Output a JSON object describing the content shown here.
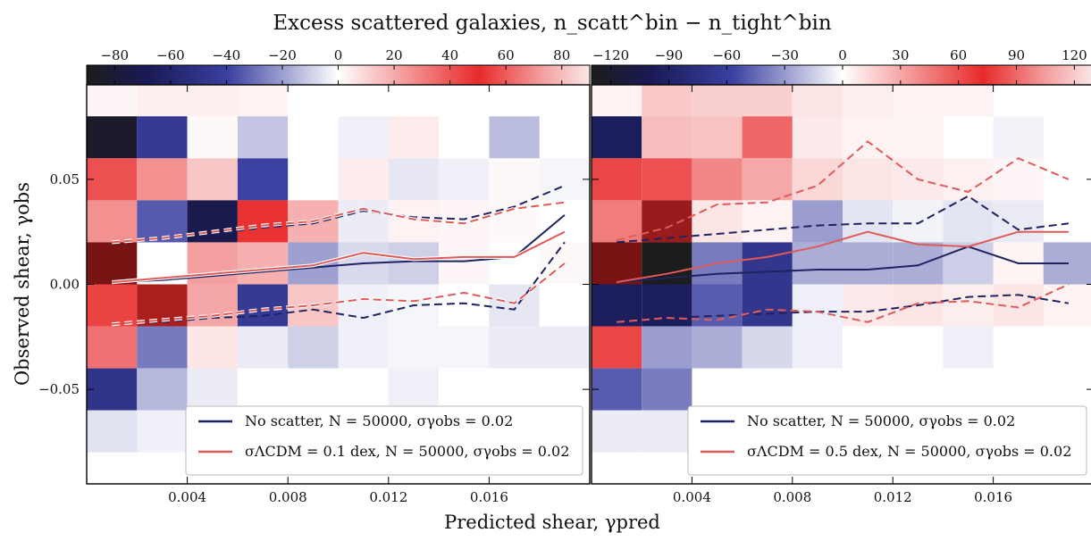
{
  "figure": {
    "title": "Excess scattered galaxies, n_scatt^bin − n_tight^bin",
    "xlabel": "Predicted shear, γpred",
    "ylabel": "Observed shear, γobs",
    "x_tick_labels": [
      "0.004",
      "0.008",
      "0.012",
      "0.016"
    ],
    "y_tick_labels": [
      "0.05",
      "0.00",
      "−0.05"
    ],
    "colors": {
      "no_scatter": "#1f2362",
      "scatter": "#e05a5a",
      "cmap_low": "#1c1c1c",
      "cmap_mid_low": "#3a40a0",
      "cmap_zero": "#ffffff",
      "cmap_mid_high": "#e82a2a",
      "cmap_high": "#fbe8e8"
    }
  },
  "chart_data": [
    {
      "type": "heatmap",
      "panel": "left",
      "colorbar": {
        "min": -90,
        "max": 90,
        "ticks": [
          -80,
          -60,
          -40,
          -20,
          0,
          20,
          40,
          60,
          80
        ],
        "tick_labels": [
          "−80",
          "−60",
          "−40",
          "−20",
          "0",
          "20",
          "40",
          "60",
          "80"
        ]
      },
      "xlim": [
        0.0,
        0.02
      ],
      "ylim": [
        -0.095,
        0.095
      ],
      "x_bins": [
        0.0,
        0.002,
        0.004,
        0.006,
        0.008,
        0.01,
        0.012,
        0.014,
        0.016,
        0.018,
        0.02
      ],
      "y_bins": [
        -0.08,
        -0.06,
        -0.04,
        -0.02,
        0.0,
        0.02,
        0.04,
        0.06,
        0.08,
        0.1
      ],
      "cells_top_to_bottom": [
        [
          3,
          5,
          5,
          4,
          0,
          0,
          0,
          0,
          0,
          0
        ],
        [
          -85,
          -45,
          2,
          -12,
          0,
          -3,
          6,
          0,
          -14,
          0
        ],
        [
          55,
          35,
          18,
          -40,
          0,
          6,
          -5,
          -3,
          2,
          -2
        ],
        [
          35,
          -35,
          -75,
          65,
          25,
          -4,
          4,
          3,
          2,
          0
        ],
        [
          95,
          0,
          30,
          25,
          -20,
          -8,
          -10,
          3,
          0,
          2
        ],
        [
          60,
          80,
          28,
          -45,
          18,
          -3,
          -2,
          0,
          -5,
          0
        ],
        [
          45,
          -28,
          8,
          -4,
          -10,
          -3,
          -2,
          -2,
          -4,
          -4
        ],
        [
          -50,
          -15,
          -4,
          0,
          0,
          0,
          -3,
          0,
          0,
          0
        ],
        [
          -6,
          -3,
          0,
          0,
          0,
          0,
          0,
          0,
          0,
          0
        ]
      ],
      "series": [
        {
          "name": "No scatter, N = 50000, σγobs = 0.02",
          "color": "#1f2362",
          "x": [
            0.001,
            0.003,
            0.005,
            0.007,
            0.009,
            0.011,
            0.013,
            0.015,
            0.017,
            0.019
          ],
          "median": [
            0.001,
            0.002,
            0.004,
            0.006,
            0.008,
            0.01,
            0.011,
            0.011,
            0.013,
            0.033
          ],
          "upper": [
            0.02,
            0.022,
            0.024,
            0.027,
            0.029,
            0.035,
            0.032,
            0.031,
            0.037,
            0.047
          ],
          "lower": [
            -0.019,
            -0.018,
            -0.016,
            -0.015,
            -0.012,
            -0.016,
            -0.01,
            -0.009,
            -0.012,
            0.02
          ]
        },
        {
          "name": "σΛCDM = 0.1 dex, N = 50000, σγobs = 0.02",
          "color": "#e05a5a",
          "x": [
            0.001,
            0.003,
            0.005,
            0.007,
            0.009,
            0.011,
            0.013,
            0.015,
            0.017,
            0.019
          ],
          "median": [
            0.001,
            0.003,
            0.005,
            0.007,
            0.009,
            0.015,
            0.012,
            0.013,
            0.013,
            0.025
          ],
          "upper": [
            0.02,
            0.022,
            0.025,
            0.028,
            0.03,
            0.036,
            0.031,
            0.029,
            0.036,
            0.039
          ],
          "lower": [
            -0.019,
            -0.017,
            -0.015,
            -0.012,
            -0.01,
            -0.007,
            -0.008,
            -0.004,
            -0.009,
            0.01
          ]
        }
      ],
      "legend": {
        "position": "lower right",
        "entries": [
          "No scatter, N = 50000, σγobs = 0.02",
          "σΛCDM = 0.1 dex, N = 50000, σγobs = 0.02"
        ]
      }
    },
    {
      "type": "heatmap",
      "panel": "right",
      "colorbar": {
        "min": -130,
        "max": 130,
        "ticks": [
          -120,
          -90,
          -60,
          -30,
          0,
          30,
          60,
          90,
          120
        ],
        "tick_labels": [
          "−120",
          "−90",
          "−60",
          "−30",
          "0",
          "30",
          "60",
          "90",
          "120"
        ]
      },
      "xlim": [
        0.0,
        0.02
      ],
      "ylim": [
        -0.095,
        0.095
      ],
      "x_bins": [
        0.0,
        0.002,
        0.004,
        0.006,
        0.008,
        0.01,
        0.012,
        0.014,
        0.016,
        0.018,
        0.02
      ],
      "y_bins": [
        -0.08,
        -0.06,
        -0.04,
        -0.02,
        0.0,
        0.02,
        0.04,
        0.06,
        0.08,
        0.1
      ],
      "cells_top_to_bottom": [
        [
          6,
          25,
          22,
          22,
          12,
          8,
          6,
          6,
          0,
          0
        ],
        [
          -100,
          30,
          28,
          70,
          10,
          6,
          5,
          0,
          -4,
          0
        ],
        [
          85,
          80,
          55,
          40,
          18,
          12,
          10,
          7,
          4,
          0
        ],
        [
          60,
          120,
          12,
          6,
          -30,
          -8,
          -4,
          -8,
          -6,
          0
        ],
        [
          150,
          -140,
          -40,
          -70,
          -25,
          -25,
          -25,
          -15,
          5,
          -25
        ],
        [
          -100,
          -100,
          -50,
          -70,
          -5,
          10,
          12,
          8,
          12,
          6
        ],
        [
          85,
          -30,
          -25,
          -12,
          -5,
          0,
          0,
          -5,
          0,
          0
        ],
        [
          -50,
          -40,
          0,
          0,
          0,
          0,
          0,
          0,
          0,
          0
        ],
        [
          -6,
          -6,
          0,
          0,
          0,
          0,
          0,
          0,
          0,
          0
        ]
      ],
      "series": [
        {
          "name": "No scatter, N = 50000, σγobs = 0.02",
          "color": "#1f2362",
          "x": [
            0.001,
            0.003,
            0.005,
            0.007,
            0.009,
            0.011,
            0.013,
            0.015,
            0.017,
            0.019
          ],
          "median": [
            0.001,
            0.003,
            0.005,
            0.006,
            0.007,
            0.007,
            0.009,
            0.018,
            0.01,
            0.01
          ],
          "upper": [
            0.02,
            0.022,
            0.024,
            0.026,
            0.028,
            0.029,
            0.029,
            0.042,
            0.026,
            0.029
          ],
          "lower": [
            -0.019,
            -0.016,
            -0.015,
            -0.014,
            -0.013,
            -0.013,
            -0.01,
            -0.006,
            -0.005,
            -0.009
          ]
        },
        {
          "name": "σΛCDM = 0.5 dex, N = 50000, σγobs = 0.02",
          "color": "#e05a5a",
          "x": [
            0.001,
            0.003,
            0.005,
            0.007,
            0.009,
            0.011,
            0.013,
            0.015,
            0.017,
            0.019
          ],
          "median": [
            0.001,
            0.005,
            0.01,
            0.013,
            0.018,
            0.025,
            0.019,
            0.018,
            0.025,
            0.025
          ],
          "upper": [
            0.021,
            0.027,
            0.038,
            0.039,
            0.047,
            0.068,
            0.05,
            0.044,
            0.06,
            0.05
          ],
          "lower": [
            -0.018,
            -0.016,
            -0.017,
            -0.012,
            -0.013,
            -0.018,
            -0.009,
            -0.008,
            -0.011,
            0.0
          ]
        }
      ],
      "legend": {
        "position": "lower right",
        "entries": [
          "No scatter, N = 50000, σγobs = 0.02",
          "σΛCDM = 0.5 dex, N = 50000, σγobs = 0.02"
        ]
      }
    }
  ]
}
